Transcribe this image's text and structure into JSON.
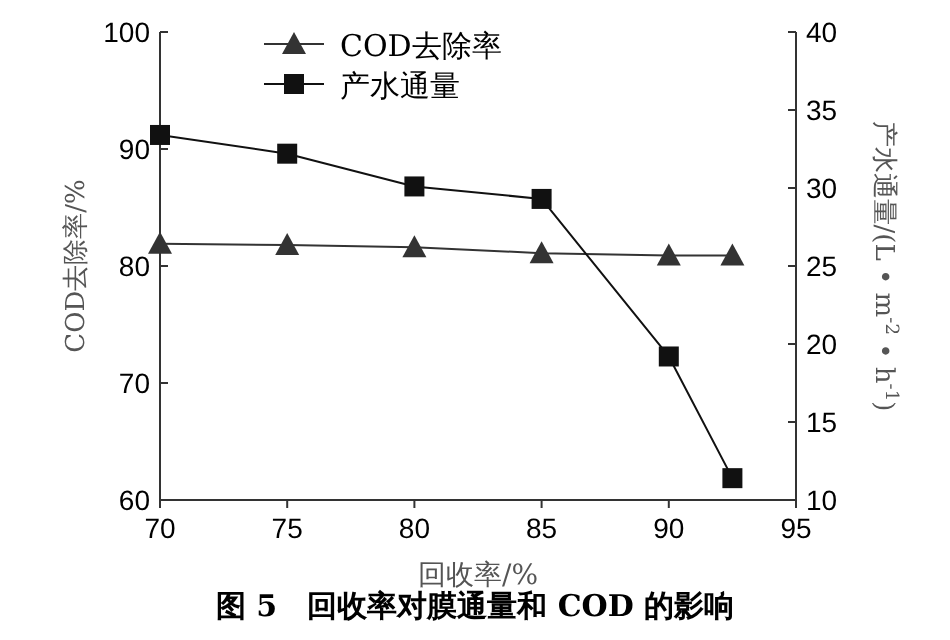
{
  "chart_data": {
    "type": "line",
    "title": "图 5　回收率对膜通量和 COD 的影响",
    "xlabel": "回收率/%",
    "ylabel": "COD去除率/%",
    "y2label": "产水通量/(L • m$^{-2}$ • h$^{-1}$)",
    "x": [
      70,
      75,
      80,
      85,
      90,
      92.5
    ],
    "series": [
      {
        "name": "COD去除率",
        "color": "#333333",
        "marker": "triangle",
        "values": [
          81.9,
          81.8,
          81.6,
          81.1,
          80.9,
          80.9
        ]
      },
      {
        "name": "产水通量",
        "color": "#111111",
        "marker": "square",
        "axis": "y2",
        "values": [
          33.4,
          32.2,
          30.1,
          29.3,
          19.2,
          11.4
        ]
      }
    ],
    "xlim": [
      70,
      95
    ],
    "xticks": [
      70,
      75,
      80,
      85,
      90,
      95
    ],
    "ylim": [
      60,
      100
    ],
    "yticks": [
      60,
      70,
      80,
      90,
      100
    ],
    "y2lim": [
      10,
      40
    ],
    "y2ticks": [
      10,
      15,
      20,
      25,
      30,
      35,
      40
    ],
    "legend": "top left",
    "grid": false,
    "line_style": "solid"
  }
}
